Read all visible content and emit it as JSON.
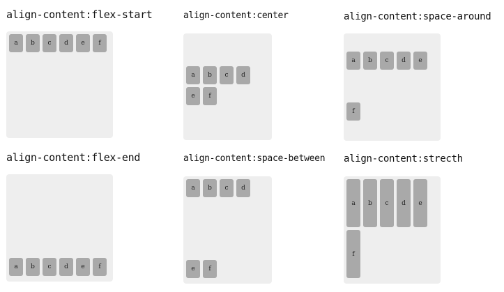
{
  "demos": [
    {
      "title": "align-content:flex-start",
      "items": [
        "a",
        "b",
        "c",
        "d",
        "e",
        "f"
      ]
    },
    {
      "title": "align-content:center",
      "items": [
        "a",
        "b",
        "c",
        "d",
        "e",
        "f"
      ]
    },
    {
      "title": "align-content:space-around",
      "items": [
        "a",
        "b",
        "c",
        "d",
        "e",
        "f"
      ]
    },
    {
      "title": "align-content:flex-end",
      "items": [
        "a",
        "b",
        "c",
        "d",
        "e",
        "f"
      ]
    },
    {
      "title": "align-content:space-between",
      "items": [
        "a",
        "b",
        "c",
        "d",
        "e",
        "f"
      ]
    },
    {
      "title": "align-content:strecth",
      "items": [
        "a",
        "b",
        "c",
        "d",
        "e",
        "f"
      ]
    }
  ]
}
